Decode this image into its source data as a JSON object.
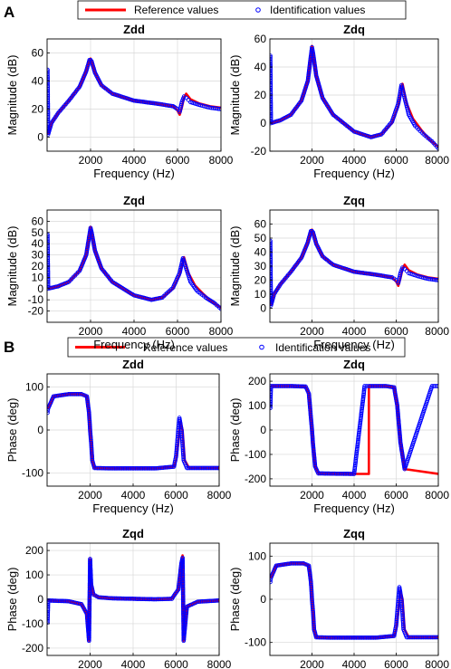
{
  "panel_labels": [
    "A",
    "B"
  ],
  "legends": [
    {
      "reference": "Reference values",
      "identification": "Identification values"
    },
    {
      "reference": "Reference values",
      "identification": "Identification values"
    }
  ],
  "colors": {
    "reference": "#ff0000",
    "identification": "#0000ff",
    "grid": "#d8d8d8",
    "axis": "#000000"
  },
  "chart_data": [
    {
      "type": "line",
      "title": "Zdd",
      "xlabel": "Frequency (Hz)",
      "ylabel": "Magnitude (dB)",
      "xlim": [
        0,
        8000
      ],
      "ylim": [
        -10,
        70
      ],
      "xticks": [
        2000,
        4000,
        6000,
        8000
      ],
      "xtick_labels": [
        "2000",
        "4000",
        "6000",
        "8000"
      ],
      "yticks": [
        0,
        20,
        40,
        60
      ],
      "ytick_labels": [
        "0",
        "20",
        "40",
        "60"
      ],
      "grid": true,
      "series": [
        {
          "name": "Reference values",
          "x": [
            50,
            200,
            500,
            1000,
            1500,
            1800,
            1950,
            2000,
            2050,
            2200,
            2500,
            3000,
            4000,
            5000,
            5800,
            6000,
            6100,
            6200,
            6300,
            6400,
            6600,
            7000,
            7500,
            8000
          ],
          "y": [
            2,
            10,
            17,
            26,
            36,
            47,
            55,
            56,
            54,
            46,
            37,
            31,
            26,
            24,
            22,
            19,
            16,
            21,
            28,
            31,
            27,
            24,
            22,
            21
          ]
        },
        {
          "name": "Identification values",
          "x": [
            20,
            50,
            200,
            500,
            1000,
            1500,
            1800,
            1950,
            2000,
            2050,
            2200,
            2500,
            3000,
            4000,
            5000,
            5800,
            6000,
            6100,
            6200,
            6300,
            6400,
            6600,
            7000,
            7500,
            8000
          ],
          "y": [
            48,
            2,
            10,
            17,
            26,
            36,
            47,
            55,
            55,
            54,
            46,
            37,
            31,
            26,
            24,
            22,
            20,
            18,
            25,
            29,
            28,
            25,
            23,
            21,
            20
          ]
        }
      ]
    },
    {
      "type": "line",
      "title": "Zdq",
      "xlabel": "Frequency (Hz)",
      "ylabel": "Magnitude (dB)",
      "xlim": [
        0,
        8000
      ],
      "ylim": [
        -20,
        60
      ],
      "xticks": [
        2000,
        4000,
        6000,
        8000
      ],
      "xtick_labels": [
        "2000",
        "4000",
        "6000",
        "8000"
      ],
      "yticks": [
        -20,
        0,
        20,
        40,
        60
      ],
      "ytick_labels": [
        "-20",
        "0",
        "20",
        "40",
        "60"
      ],
      "grid": true,
      "series": [
        {
          "name": "Reference values",
          "x": [
            50,
            500,
            1000,
            1500,
            1800,
            1950,
            2000,
            2050,
            2200,
            2500,
            3000,
            4000,
            4800,
            5300,
            5800,
            6100,
            6300,
            6500,
            6800,
            7200,
            7600,
            8000
          ],
          "y": [
            0,
            2,
            6,
            16,
            30,
            48,
            55,
            50,
            34,
            18,
            6,
            -6,
            -10,
            -8,
            0,
            12,
            28,
            14,
            3,
            -5,
            -12,
            -17
          ]
        },
        {
          "name": "Identification values",
          "x": [
            20,
            50,
            500,
            1000,
            1500,
            1800,
            1950,
            2000,
            2050,
            2200,
            2500,
            3000,
            4000,
            4800,
            5300,
            5800,
            6100,
            6250,
            6400,
            6600,
            6900,
            7300,
            7700,
            8000
          ],
          "y": [
            48,
            0,
            2,
            6,
            16,
            30,
            48,
            54,
            50,
            34,
            18,
            6,
            -6,
            -10,
            -8,
            1,
            14,
            27,
            18,
            6,
            -2,
            -8,
            -13,
            -18
          ]
        }
      ]
    },
    {
      "type": "line",
      "title": "Zqd",
      "xlabel": "Frequency (Hz)",
      "ylabel": "Magnitude (dB)",
      "xlim": [
        0,
        8000
      ],
      "ylim": [
        -30,
        70
      ],
      "xticks": [
        2000,
        4000,
        6000,
        8000
      ],
      "xtick_labels": [
        "2000",
        "4000",
        "6000",
        "8000"
      ],
      "yticks": [
        -20,
        -10,
        0,
        10,
        20,
        30,
        40,
        50,
        60
      ],
      "ytick_labels": [
        "-20",
        "-10",
        "0",
        "10",
        "20",
        "30",
        "40",
        "50",
        "60"
      ],
      "grid": true,
      "series": [
        {
          "name": "Reference values",
          "x": [
            50,
            500,
            1000,
            1500,
            1800,
            1950,
            2000,
            2050,
            2200,
            2500,
            3000,
            4000,
            4800,
            5300,
            5800,
            6100,
            6300,
            6500,
            6800,
            7200,
            7600,
            8000
          ],
          "y": [
            0,
            2,
            6,
            16,
            30,
            48,
            55,
            50,
            34,
            18,
            6,
            -6,
            -10,
            -8,
            0,
            12,
            28,
            14,
            3,
            -5,
            -12,
            -17
          ]
        },
        {
          "name": "Identification values",
          "x": [
            20,
            50,
            500,
            1000,
            1500,
            1800,
            1950,
            2000,
            2050,
            2200,
            2500,
            3000,
            4000,
            4800,
            5300,
            5800,
            6100,
            6250,
            6400,
            6600,
            6900,
            7300,
            7700,
            8000
          ],
          "y": [
            48,
            0,
            2,
            6,
            16,
            30,
            48,
            54,
            50,
            34,
            18,
            6,
            -6,
            -10,
            -8,
            1,
            14,
            27,
            18,
            6,
            -2,
            -8,
            -13,
            -18
          ]
        }
      ]
    },
    {
      "type": "line",
      "title": "Zqq",
      "xlabel": "Frequency (Hz)",
      "ylabel": "Magnitude (dB)",
      "xlim": [
        0,
        8000
      ],
      "ylim": [
        -10,
        70
      ],
      "xticks": [
        2000,
        4000,
        6000,
        8000
      ],
      "xtick_labels": [
        "2000",
        "4000",
        "6000",
        "8000"
      ],
      "yticks": [
        0,
        10,
        20,
        30,
        40,
        50,
        60
      ],
      "ytick_labels": [
        "0",
        "10",
        "20",
        "30",
        "40",
        "50",
        "60"
      ],
      "grid": true,
      "series": [
        {
          "name": "Reference values",
          "x": [
            50,
            200,
            500,
            1000,
            1500,
            1800,
            1950,
            2000,
            2050,
            2200,
            2500,
            3000,
            4000,
            5000,
            5800,
            6000,
            6100,
            6200,
            6300,
            6400,
            6600,
            7000,
            7500,
            8000
          ],
          "y": [
            2,
            10,
            17,
            26,
            36,
            47,
            55,
            56,
            54,
            46,
            37,
            31,
            26,
            24,
            22,
            19,
            16,
            21,
            28,
            31,
            27,
            24,
            22,
            21
          ]
        },
        {
          "name": "Identification values",
          "x": [
            20,
            50,
            200,
            500,
            1000,
            1500,
            1800,
            1950,
            2000,
            2050,
            2200,
            2500,
            3000,
            4000,
            5000,
            5800,
            6000,
            6100,
            6200,
            6300,
            6400,
            6600,
            7000,
            7500,
            8000
          ],
          "y": [
            48,
            2,
            10,
            17,
            26,
            36,
            47,
            55,
            55,
            54,
            46,
            37,
            31,
            26,
            24,
            22,
            20,
            18,
            25,
            29,
            28,
            25,
            23,
            21,
            20
          ]
        }
      ]
    },
    {
      "type": "line",
      "title": "Zdd",
      "xlabel": "Frequency (Hz)",
      "ylabel": "Phase (deg)",
      "xlim": [
        0,
        8000
      ],
      "ylim": [
        -130,
        130
      ],
      "xticks": [
        2000,
        4000,
        6000,
        8000
      ],
      "xtick_labels": [
        "2000",
        "4000",
        "6000",
        "8000"
      ],
      "yticks": [
        -100,
        0,
        100
      ],
      "ytick_labels": [
        "-100",
        "0",
        "100"
      ],
      "grid": true,
      "series": [
        {
          "name": "Reference values",
          "x": [
            50,
            300,
            1000,
            1600,
            1850,
            1950,
            2000,
            2050,
            2100,
            2200,
            3000,
            5000,
            5900,
            6000,
            6100,
            6200,
            6300,
            6400,
            6600,
            8000
          ],
          "y": [
            50,
            78,
            83,
            83,
            78,
            40,
            0,
            -30,
            -70,
            -88,
            -89,
            -89,
            -85,
            -70,
            -30,
            20,
            0,
            -70,
            -88,
            -88
          ]
        },
        {
          "name": "Identification values",
          "x": [
            20,
            50,
            300,
            1000,
            1600,
            1850,
            1950,
            2000,
            2050,
            2100,
            2200,
            3000,
            5000,
            5900,
            6000,
            6100,
            6150,
            6250,
            6350,
            6500,
            8000
          ],
          "y": [
            40,
            50,
            78,
            83,
            83,
            78,
            40,
            0,
            -30,
            -70,
            -88,
            -89,
            -89,
            -85,
            -60,
            0,
            28,
            0,
            -70,
            -88,
            -88
          ]
        }
      ]
    },
    {
      "type": "line",
      "title": "Zdq",
      "xlabel": "Frequency (Hz)",
      "ylabel": "Phase (deg)",
      "xlim": [
        0,
        8000
      ],
      "ylim": [
        -230,
        230
      ],
      "xticks": [
        2000,
        4000,
        6000,
        8000
      ],
      "xtick_labels": [
        "2000",
        "4000",
        "6000",
        "8000"
      ],
      "yticks": [
        -200,
        -100,
        0,
        100,
        200
      ],
      "ytick_labels": [
        "-200",
        "-100",
        "0",
        "100",
        "200"
      ],
      "grid": true,
      "series": [
        {
          "name": "Reference values",
          "x": [
            50,
            1000,
            1700,
            1850,
            1950,
            2000,
            2050,
            2150,
            2300,
            4000,
            4700,
            4700,
            5500,
            5900,
            6050,
            6200,
            6400,
            8000
          ],
          "y": [
            180,
            180,
            178,
            150,
            50,
            0,
            -60,
            -150,
            -178,
            -180,
            -180,
            180,
            180,
            175,
            100,
            -50,
            -160,
            -180
          ]
        },
        {
          "name": "Identification values",
          "x": [
            20,
            50,
            1000,
            1700,
            1850,
            1950,
            2000,
            2050,
            2150,
            2300,
            4000,
            4500,
            4700,
            5500,
            5900,
            6050,
            6200,
            6400,
            7700,
            8000
          ],
          "y": [
            90,
            180,
            180,
            178,
            150,
            50,
            0,
            -60,
            -150,
            -178,
            -180,
            180,
            180,
            180,
            175,
            100,
            -50,
            -160,
            180,
            180
          ]
        }
      ]
    },
    {
      "type": "line",
      "title": "Zqd",
      "xlabel": "Frequency (Hz)",
      "ylabel": "Phase (deg)",
      "xlim": [
        0,
        8000
      ],
      "ylim": [
        -230,
        230
      ],
      "xticks": [
        2000,
        4000,
        6000,
        8000
      ],
      "xtick_labels": [
        "2000",
        "4000",
        "6000",
        "8000"
      ],
      "yticks": [
        -200,
        -100,
        0,
        100,
        200
      ],
      "ytick_labels": [
        "-200",
        "-100",
        "0",
        "100",
        "200"
      ],
      "grid": true,
      "series": [
        {
          "name": "Reference values",
          "x": [
            50,
            1000,
            1600,
            1850,
            1950,
            2000,
            2050,
            2150,
            2400,
            3000,
            5000,
            5800,
            6100,
            6250,
            6300,
            6350,
            6500,
            7000,
            8000
          ],
          "y": [
            -5,
            -8,
            -20,
            -60,
            -170,
            165,
            60,
            20,
            8,
            4,
            0,
            2,
            40,
            150,
            180,
            -170,
            -30,
            -10,
            -5
          ]
        },
        {
          "name": "Identification values",
          "x": [
            20,
            50,
            1000,
            1600,
            1850,
            1950,
            2000,
            2050,
            2150,
            2400,
            3000,
            5000,
            5800,
            6100,
            6250,
            6300,
            6350,
            6500,
            7000,
            8000
          ],
          "y": [
            -95,
            -5,
            -8,
            -20,
            -60,
            -170,
            165,
            60,
            20,
            8,
            4,
            0,
            2,
            40,
            150,
            170,
            -170,
            -30,
            -10,
            -5
          ]
        }
      ]
    },
    {
      "type": "line",
      "title": "Zqq",
      "xlabel": "Frequency (Hz)",
      "ylabel": "Phase (deg)",
      "xlim": [
        0,
        8000
      ],
      "ylim": [
        -130,
        130
      ],
      "xticks": [
        2000,
        4000,
        6000,
        8000
      ],
      "xtick_labels": [
        "2000",
        "4000",
        "6000",
        "8000"
      ],
      "yticks": [
        -100,
        0,
        100
      ],
      "ytick_labels": [
        "-100",
        "0",
        "100"
      ],
      "grid": true,
      "series": [
        {
          "name": "Reference values",
          "x": [
            50,
            300,
            1000,
            1600,
            1850,
            1950,
            2000,
            2050,
            2100,
            2200,
            3000,
            5000,
            5900,
            6000,
            6100,
            6200,
            6300,
            6400,
            6600,
            8000
          ],
          "y": [
            50,
            78,
            83,
            83,
            78,
            40,
            0,
            -30,
            -70,
            -88,
            -89,
            -89,
            -85,
            -70,
            -30,
            20,
            0,
            -70,
            -88,
            -88
          ]
        },
        {
          "name": "Identification values",
          "x": [
            20,
            50,
            300,
            1000,
            1600,
            1850,
            1950,
            2000,
            2050,
            2100,
            2200,
            3000,
            5000,
            5900,
            6000,
            6100,
            6150,
            6250,
            6350,
            6500,
            8000
          ],
          "y": [
            40,
            50,
            78,
            83,
            83,
            78,
            40,
            0,
            -30,
            -70,
            -88,
            -89,
            -89,
            -85,
            -60,
            0,
            28,
            0,
            -70,
            -88,
            -88
          ]
        }
      ]
    }
  ]
}
